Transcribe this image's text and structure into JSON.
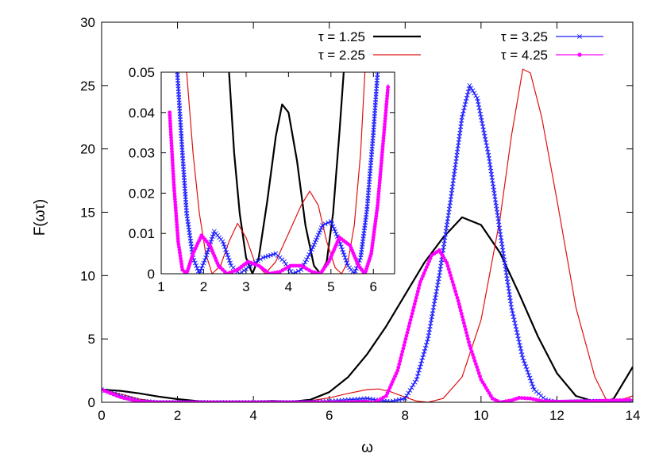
{
  "chart_data": [
    {
      "type": "line",
      "xlabel": "ω",
      "ylabel": "F(ωτ)",
      "xlim": [
        0,
        14
      ],
      "ylim": [
        0,
        30
      ],
      "xticks": [
        "0",
        "2",
        "4",
        "6",
        "8",
        "10",
        "12",
        "14"
      ],
      "yticks": [
        "0",
        "5",
        "10",
        "15",
        "20",
        "25",
        "30"
      ],
      "legend_position": "top-right",
      "series": [
        {
          "name": "τ = 1.25",
          "color": "#000000",
          "marker": "none",
          "points": [
            [
              0,
              1.0
            ],
            [
              0.5,
              0.9
            ],
            [
              1,
              0.7
            ],
            [
              1.5,
              0.45
            ],
            [
              2,
              0.25
            ],
            [
              2.5,
              0.1
            ],
            [
              3,
              0.02
            ],
            [
              3.5,
              0.0
            ],
            [
              4,
              0.05
            ],
            [
              4.5,
              0.1
            ],
            [
              5,
              0.05
            ],
            [
              5.5,
              0.2
            ],
            [
              6,
              0.8
            ],
            [
              6.5,
              2.0
            ],
            [
              7,
              3.8
            ],
            [
              7.5,
              6.0
            ],
            [
              8,
              8.5
            ],
            [
              8.5,
              11.0
            ],
            [
              9,
              13.0
            ],
            [
              9.5,
              14.6
            ],
            [
              10,
              14.0
            ],
            [
              10.5,
              11.8
            ],
            [
              11,
              8.6
            ],
            [
              11.5,
              5.2
            ],
            [
              12,
              2.3
            ],
            [
              12.5,
              0.5
            ],
            [
              13,
              0.05
            ],
            [
              13.3,
              0.0
            ],
            [
              13.5,
              0.3
            ],
            [
              14,
              2.8
            ]
          ]
        },
        {
          "name": "τ = 2.25",
          "color": "#e01010",
          "marker": "none",
          "points": [
            [
              0,
              1.0
            ],
            [
              0.5,
              0.65
            ],
            [
              1,
              0.25
            ],
            [
              1.5,
              0.05
            ],
            [
              2,
              0.01
            ],
            [
              2.5,
              0.0
            ],
            [
              3,
              0.0
            ],
            [
              3.5,
              0.0
            ],
            [
              4,
              0.0
            ],
            [
              4.5,
              0.0
            ],
            [
              5,
              0.01
            ],
            [
              5.5,
              0.12
            ],
            [
              6,
              0.35
            ],
            [
              6.5,
              0.7
            ],
            [
              7,
              1.0
            ],
            [
              7.3,
              1.05
            ],
            [
              7.6,
              0.85
            ],
            [
              8,
              0.4
            ],
            [
              8.3,
              0.1
            ],
            [
              8.6,
              0.0
            ],
            [
              9,
              0.3
            ],
            [
              9.5,
              2.0
            ],
            [
              10,
              6.5
            ],
            [
              10.5,
              14.5
            ],
            [
              10.8,
              21.0
            ],
            [
              11,
              24.5
            ],
            [
              11.1,
              26.3
            ],
            [
              11.3,
              26.0
            ],
            [
              11.6,
              22.5
            ],
            [
              12,
              16.0
            ],
            [
              12.5,
              7.5
            ],
            [
              13,
              2.0
            ],
            [
              13.3,
              0.2
            ],
            [
              13.5,
              0.0
            ],
            [
              13.8,
              0.3
            ],
            [
              14,
              0.5
            ]
          ]
        },
        {
          "name": "τ = 3.25",
          "color": "#1a1aff",
          "marker": "cross",
          "points": [
            [
              0,
              1.0
            ],
            [
              0.5,
              0.5
            ],
            [
              1,
              0.1
            ],
            [
              1.5,
              0.0
            ],
            [
              2,
              0.0
            ],
            [
              3,
              0.0
            ],
            [
              4,
              0.0
            ],
            [
              5,
              0.0
            ],
            [
              5.5,
              0.02
            ],
            [
              6,
              0.08
            ],
            [
              6.5,
              0.2
            ],
            [
              7,
              0.3
            ],
            [
              7.3,
              0.15
            ],
            [
              7.6,
              0.05
            ],
            [
              8,
              0.3
            ],
            [
              8.3,
              1.8
            ],
            [
              8.6,
              5.0
            ],
            [
              8.9,
              10.0
            ],
            [
              9.2,
              16.0
            ],
            [
              9.5,
              22.5
            ],
            [
              9.7,
              25.0
            ],
            [
              9.9,
              24.0
            ],
            [
              10.2,
              19.5
            ],
            [
              10.5,
              13.5
            ],
            [
              10.8,
              7.5
            ],
            [
              11.1,
              3.5
            ],
            [
              11.4,
              1.0
            ],
            [
              11.7,
              0.2
            ],
            [
              12,
              0.0
            ],
            [
              12.5,
              0.05
            ],
            [
              13,
              0.1
            ],
            [
              13.5,
              0.05
            ],
            [
              14,
              0.1
            ]
          ]
        },
        {
          "name": "τ = 4.25",
          "color": "#ff00ff",
          "marker": "dot",
          "points": [
            [
              0,
              1.0
            ],
            [
              0.5,
              0.4
            ],
            [
              1,
              0.05
            ],
            [
              1.5,
              0.0
            ],
            [
              2,
              0.0
            ],
            [
              3,
              0.0
            ],
            [
              4,
              0.0
            ],
            [
              5,
              0.0
            ],
            [
              6,
              0.0
            ],
            [
              6.5,
              0.02
            ],
            [
              7,
              0.05
            ],
            [
              7.2,
              0.0
            ],
            [
              7.5,
              0.5
            ],
            [
              7.8,
              2.5
            ],
            [
              8.1,
              6.0
            ],
            [
              8.4,
              9.5
            ],
            [
              8.7,
              11.6
            ],
            [
              8.9,
              12.0
            ],
            [
              9.1,
              11.0
            ],
            [
              9.4,
              8.0
            ],
            [
              9.7,
              4.5
            ],
            [
              10,
              1.8
            ],
            [
              10.3,
              0.3
            ],
            [
              10.5,
              0.0
            ],
            [
              10.8,
              0.15
            ],
            [
              11,
              0.35
            ],
            [
              11.3,
              0.3
            ],
            [
              11.6,
              0.1
            ],
            [
              12,
              0.05
            ],
            [
              13,
              0.1
            ],
            [
              14,
              0.2
            ]
          ]
        }
      ]
    },
    {
      "type": "line",
      "inset": true,
      "xlim": [
        1,
        6.5
      ],
      "ylim": [
        0,
        0.05
      ],
      "xticks": [
        "1",
        "2",
        "3",
        "4",
        "5",
        "6"
      ],
      "yticks": [
        "0",
        "0.01",
        "0.02",
        "0.03",
        "0.04",
        "0.05"
      ],
      "series": [
        {
          "name": "τ = 1.25",
          "color": "#000000",
          "marker": "none",
          "points": [
            [
              2.6,
              0.05
            ],
            [
              2.72,
              0.03
            ],
            [
              2.85,
              0.015
            ],
            [
              3.0,
              0.004
            ],
            [
              3.15,
              0.0
            ],
            [
              3.3,
              0.004
            ],
            [
              3.5,
              0.018
            ],
            [
              3.7,
              0.034
            ],
            [
              3.85,
              0.042
            ],
            [
              4.0,
              0.04
            ],
            [
              4.2,
              0.028
            ],
            [
              4.4,
              0.012
            ],
            [
              4.6,
              0.002
            ],
            [
              4.75,
              0.0
            ],
            [
              4.9,
              0.003
            ],
            [
              5.05,
              0.015
            ],
            [
              5.2,
              0.035
            ],
            [
              5.3,
              0.05
            ]
          ]
        },
        {
          "name": "τ = 2.25",
          "color": "#e01010",
          "marker": "none",
          "points": [
            [
              1.6,
              0.05
            ],
            [
              1.75,
              0.03
            ],
            [
              1.9,
              0.015
            ],
            [
              2.05,
              0.005
            ],
            [
              2.2,
              0.0
            ],
            [
              2.4,
              0.002
            ],
            [
              2.6,
              0.008
            ],
            [
              2.8,
              0.0125
            ],
            [
              3.0,
              0.009
            ],
            [
              3.2,
              0.003
            ],
            [
              3.45,
              0.0
            ],
            [
              3.7,
              0.003
            ],
            [
              4.0,
              0.01
            ],
            [
              4.3,
              0.017
            ],
            [
              4.5,
              0.0205
            ],
            [
              4.7,
              0.017
            ],
            [
              4.9,
              0.008
            ],
            [
              5.1,
              0.0015
            ],
            [
              5.25,
              0.0
            ],
            [
              5.4,
              0.003
            ],
            [
              5.55,
              0.012
            ],
            [
              5.7,
              0.03
            ],
            [
              5.8,
              0.05
            ]
          ]
        },
        {
          "name": "τ = 3.25",
          "color": "#1a1aff",
          "marker": "cross",
          "points": [
            [
              1.38,
              0.05
            ],
            [
              1.5,
              0.03
            ],
            [
              1.6,
              0.015
            ],
            [
              1.75,
              0.004
            ],
            [
              1.9,
              0.0
            ],
            [
              2.05,
              0.004
            ],
            [
              2.25,
              0.0105
            ],
            [
              2.45,
              0.008
            ],
            [
              2.65,
              0.002
            ],
            [
              2.85,
              0.0
            ],
            [
              3.1,
              0.002
            ],
            [
              3.4,
              0.004
            ],
            [
              3.7,
              0.005
            ],
            [
              3.9,
              0.003
            ],
            [
              4.1,
              0.0
            ],
            [
              4.3,
              0.001
            ],
            [
              4.55,
              0.006
            ],
            [
              4.8,
              0.012
            ],
            [
              5.0,
              0.013
            ],
            [
              5.2,
              0.008
            ],
            [
              5.4,
              0.002
            ],
            [
              5.55,
              0.0
            ],
            [
              5.7,
              0.004
            ],
            [
              5.85,
              0.016
            ],
            [
              6.0,
              0.035
            ],
            [
              6.1,
              0.05
            ]
          ]
        },
        {
          "name": "τ = 4.25",
          "color": "#ff00ff",
          "marker": "dot",
          "points": [
            [
              1.2,
              0.04
            ],
            [
              1.3,
              0.022
            ],
            [
              1.4,
              0.008
            ],
            [
              1.5,
              0.001
            ],
            [
              1.6,
              0.0
            ],
            [
              1.75,
              0.005
            ],
            [
              1.95,
              0.0095
            ],
            [
              2.15,
              0.007
            ],
            [
              2.35,
              0.002
            ],
            [
              2.55,
              0.0
            ],
            [
              2.8,
              0.001
            ],
            [
              3.05,
              0.003
            ],
            [
              3.3,
              0.002
            ],
            [
              3.55,
              0.0
            ],
            [
              3.8,
              0.0005
            ],
            [
              4.05,
              0.002
            ],
            [
              4.3,
              0.002
            ],
            [
              4.55,
              0.0005
            ],
            [
              4.75,
              0.0
            ],
            [
              4.95,
              0.003
            ],
            [
              5.2,
              0.009
            ],
            [
              5.45,
              0.007
            ],
            [
              5.65,
              0.002
            ],
            [
              5.8,
              0.0
            ],
            [
              5.95,
              0.005
            ],
            [
              6.1,
              0.017
            ],
            [
              6.25,
              0.035
            ],
            [
              6.35,
              0.047
            ]
          ]
        }
      ]
    }
  ]
}
